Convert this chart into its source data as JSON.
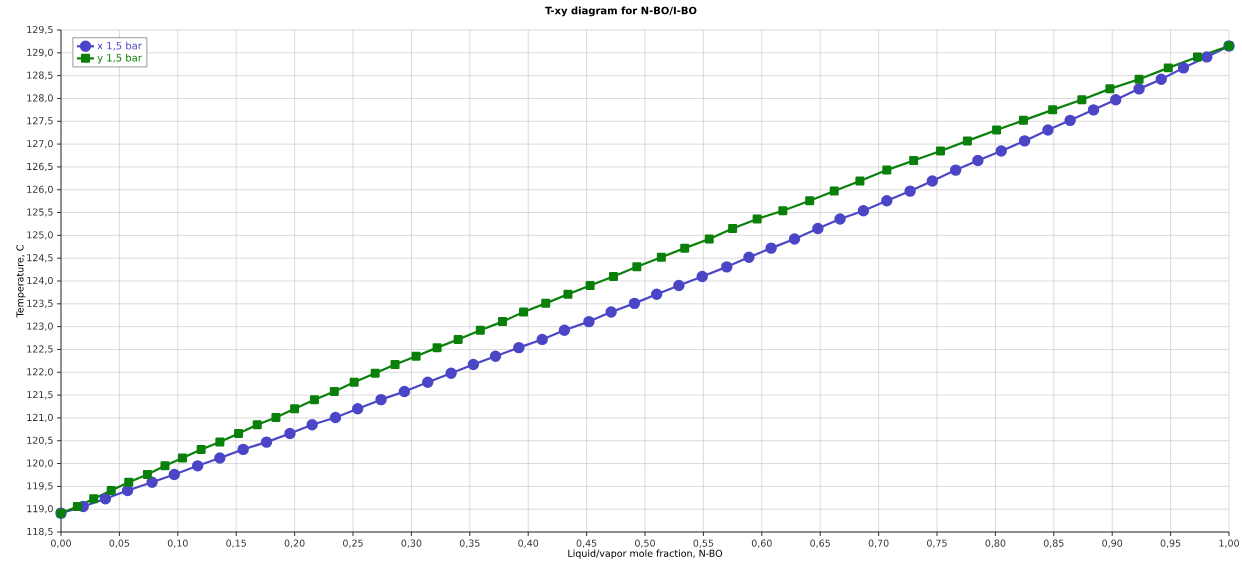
{
  "chart_data": {
    "type": "line",
    "title": "T-xy diagram for N-BO/I-BO",
    "xlabel": "Liquid/vapor mole fraction, N-BO",
    "ylabel": "Temperature, C",
    "series": [
      {
        "name": "x  1,5 bar",
        "color": "#4a46c6",
        "marker": "circle",
        "line_style": "solid",
        "x": [
          0,
          0.019,
          0.038,
          0.057,
          0.078,
          0.097,
          0.117,
          0.136,
          0.156,
          0.176,
          0.196,
          0.215,
          0.235,
          0.254,
          0.274,
          0.294,
          0.314,
          0.334,
          0.353,
          0.372,
          0.392,
          0.412,
          0.431,
          0.452,
          0.471,
          0.491,
          0.51,
          0.529,
          0.549,
          0.57,
          0.589,
          0.608,
          0.628,
          0.648,
          0.667,
          0.687,
          0.707,
          0.727,
          0.746,
          0.766,
          0.785,
          0.805,
          0.825,
          0.845,
          0.864,
          0.884,
          0.903,
          0.923,
          0.942,
          0.961,
          0.981,
          1.0
        ],
        "values": [
          118.91,
          119.06,
          119.23,
          119.41,
          119.59,
          119.76,
          119.95,
          120.12,
          120.31,
          120.47,
          120.66,
          120.85,
          121.01,
          121.2,
          121.4,
          121.58,
          121.78,
          121.98,
          122.17,
          122.35,
          122.54,
          122.72,
          122.92,
          123.11,
          123.32,
          123.51,
          123.71,
          123.9,
          124.1,
          124.31,
          124.52,
          124.72,
          124.92,
          125.15,
          125.36,
          125.54,
          125.76,
          125.97,
          126.19,
          126.43,
          126.64,
          126.85,
          127.07,
          127.31,
          127.52,
          127.75,
          127.97,
          128.21,
          128.42,
          128.67,
          128.91,
          129.15
        ]
      },
      {
        "name": "y  1,5 bar",
        "color": "#0a800a",
        "marker": "square",
        "line_style": "solid",
        "x": [
          0,
          0.014,
          0.028,
          0.043,
          0.058,
          0.074,
          0.089,
          0.104,
          0.12,
          0.136,
          0.152,
          0.168,
          0.184,
          0.2,
          0.217,
          0.234,
          0.251,
          0.269,
          0.286,
          0.304,
          0.322,
          0.34,
          0.359,
          0.378,
          0.396,
          0.415,
          0.434,
          0.453,
          0.473,
          0.493,
          0.514,
          0.534,
          0.555,
          0.575,
          0.596,
          0.618,
          0.641,
          0.662,
          0.684,
          0.707,
          0.73,
          0.753,
          0.776,
          0.801,
          0.824,
          0.849,
          0.874,
          0.898,
          0.923,
          0.948,
          0.973,
          1.0
        ],
        "values": [
          118.91,
          119.06,
          119.23,
          119.41,
          119.59,
          119.76,
          119.95,
          120.12,
          120.31,
          120.47,
          120.66,
          120.85,
          121.01,
          121.2,
          121.4,
          121.58,
          121.78,
          121.98,
          122.17,
          122.35,
          122.54,
          122.72,
          122.92,
          123.11,
          123.32,
          123.51,
          123.71,
          123.9,
          124.1,
          124.31,
          124.52,
          124.72,
          124.92,
          125.15,
          125.36,
          125.54,
          125.76,
          125.97,
          126.19,
          126.43,
          126.64,
          126.85,
          127.07,
          127.31,
          127.52,
          127.75,
          127.97,
          128.21,
          128.42,
          128.67,
          128.91,
          129.15
        ]
      }
    ],
    "xlim": [
      0,
      1
    ],
    "ylim": [
      118.5,
      129.5
    ],
    "xticks": [
      {
        "value": 0,
        "label": "0,00"
      },
      {
        "value": 0.05,
        "label": "0,05"
      },
      {
        "value": 0.1,
        "label": "0,10"
      },
      {
        "value": 0.15,
        "label": "0,15"
      },
      {
        "value": 0.2,
        "label": "0,20"
      },
      {
        "value": 0.25,
        "label": "0,25"
      },
      {
        "value": 0.3,
        "label": "0,30"
      },
      {
        "value": 0.35,
        "label": "0,35"
      },
      {
        "value": 0.4,
        "label": "0,40"
      },
      {
        "value": 0.45,
        "label": "0,45"
      },
      {
        "value": 0.5,
        "label": "0,50"
      },
      {
        "value": 0.55,
        "label": "0,55"
      },
      {
        "value": 0.6,
        "label": "0,60"
      },
      {
        "value": 0.65,
        "label": "0,65"
      },
      {
        "value": 0.7,
        "label": "0,70"
      },
      {
        "value": 0.75,
        "label": "0,75"
      },
      {
        "value": 0.8,
        "label": "0,80"
      },
      {
        "value": 0.85,
        "label": "0,85"
      },
      {
        "value": 0.9,
        "label": "0,90"
      },
      {
        "value": 0.95,
        "label": "0,95"
      },
      {
        "value": 1,
        "label": "1,00"
      }
    ],
    "yticks": [
      {
        "value": 118.5,
        "label": "118,5"
      },
      {
        "value": 119,
        "label": "119,0"
      },
      {
        "value": 119.5,
        "label": "119,5"
      },
      {
        "value": 120,
        "label": "120,0"
      },
      {
        "value": 120.5,
        "label": "120,5"
      },
      {
        "value": 121,
        "label": "121,0"
      },
      {
        "value": 121.5,
        "label": "121,5"
      },
      {
        "value": 122,
        "label": "122,0"
      },
      {
        "value": 122.5,
        "label": "122,5"
      },
      {
        "value": 123,
        "label": "123,0"
      },
      {
        "value": 123.5,
        "label": "123,5"
      },
      {
        "value": 124,
        "label": "124,0"
      },
      {
        "value": 124.5,
        "label": "124,5"
      },
      {
        "value": 125,
        "label": "125,0"
      },
      {
        "value": 125.5,
        "label": "125,5"
      },
      {
        "value": 126,
        "label": "126,0"
      },
      {
        "value": 126.5,
        "label": "126,5"
      },
      {
        "value": 127,
        "label": "127,0"
      },
      {
        "value": 127.5,
        "label": "127,5"
      },
      {
        "value": 128,
        "label": "128,0"
      },
      {
        "value": 128.5,
        "label": "128,5"
      },
      {
        "value": 129,
        "label": "129,0"
      },
      {
        "value": 129.5,
        "label": "129,5"
      }
    ],
    "grid": true,
    "legend": "top left"
  }
}
